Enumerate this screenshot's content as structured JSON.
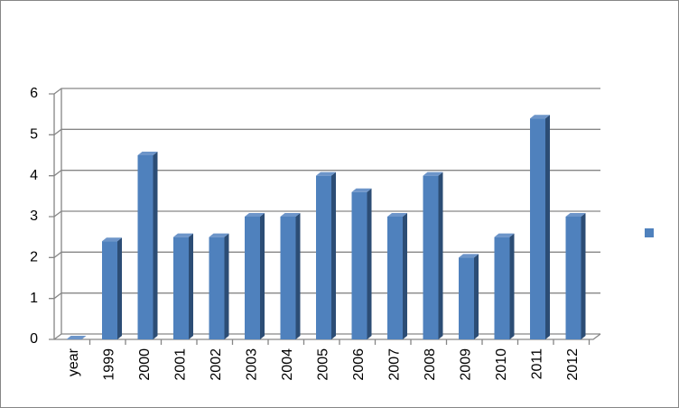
{
  "chart_data": {
    "type": "bar",
    "categories": [
      "year",
      "1999",
      "2000",
      "2001",
      "2002",
      "2003",
      "2004",
      "2005",
      "2006",
      "2007",
      "2008",
      "2009",
      "2010",
      "2011",
      "2012"
    ],
    "values": [
      0,
      2.4,
      4.5,
      2.5,
      2.5,
      3,
      3,
      4,
      3.6,
      3,
      4,
      2,
      2.5,
      5.4,
      3
    ],
    "color": "#4f81bd",
    "ylim": [
      0,
      6
    ],
    "yticks": [
      0,
      1,
      2,
      3,
      4,
      5,
      6
    ],
    "grid": true
  }
}
